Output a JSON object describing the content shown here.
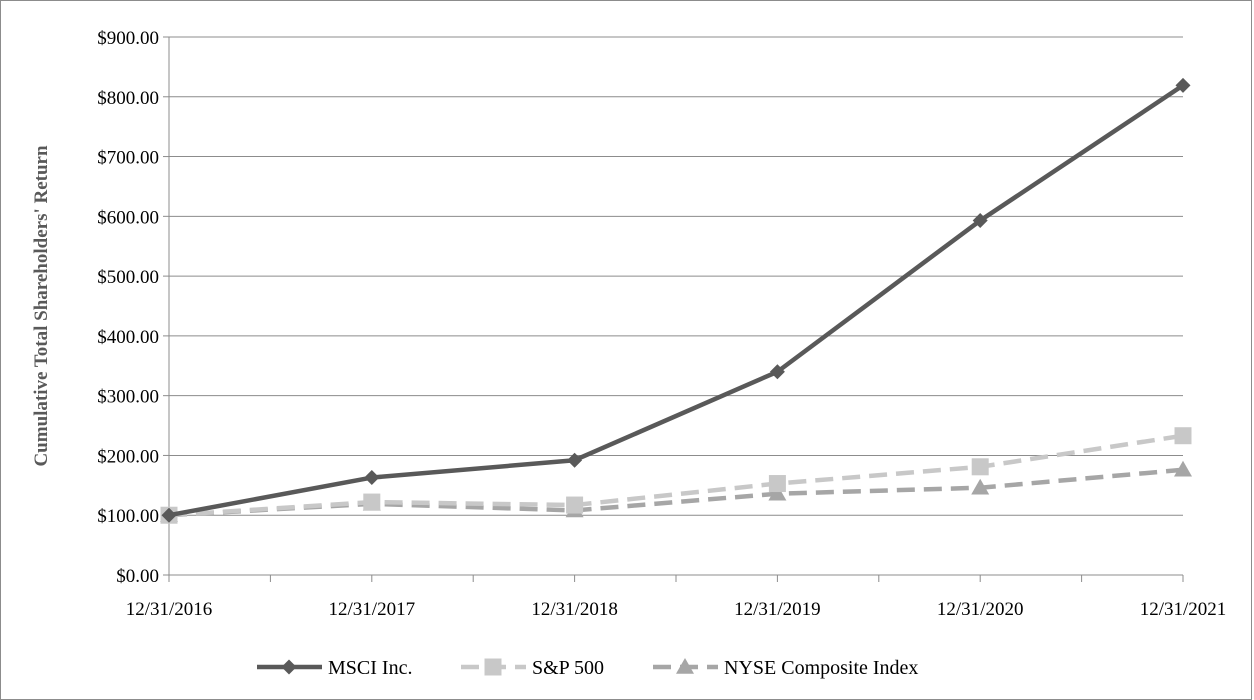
{
  "chart_data": {
    "type": "line",
    "title": "",
    "ylabel": "Cumulative Total Shareholders' Return",
    "xlabel": "",
    "categories": [
      "12/31/2016",
      "12/31/2017",
      "12/31/2018",
      "12/31/2019",
      "12/31/2020",
      "12/31/2021"
    ],
    "ylim": [
      0,
      900
    ],
    "yticks": [
      0,
      100,
      200,
      300,
      400,
      500,
      600,
      700,
      800,
      900
    ],
    "ytick_labels": [
      "$0.00",
      "$100.00",
      "$200.00",
      "$300.00",
      "$400.00",
      "$500.00",
      "$600.00",
      "$700.00",
      "$800.00",
      "$900.00"
    ],
    "grid": true,
    "legend_position": "bottom",
    "series": [
      {
        "name": "MSCI Inc.",
        "values": [
          100,
          163,
          192,
          340,
          593,
          819
        ],
        "color": "#595959",
        "marker": "diamond",
        "dash": "solid"
      },
      {
        "name": "S&P 500",
        "values": [
          100,
          122,
          117,
          153,
          181,
          233
        ],
        "color": "#c8c8c8",
        "marker": "square",
        "dash": "dashed"
      },
      {
        "name": "NYSE Composite Index",
        "values": [
          100,
          119,
          108,
          136,
          146,
          176
        ],
        "color": "#a6a6a6",
        "marker": "triangle",
        "dash": "dashed"
      }
    ]
  }
}
